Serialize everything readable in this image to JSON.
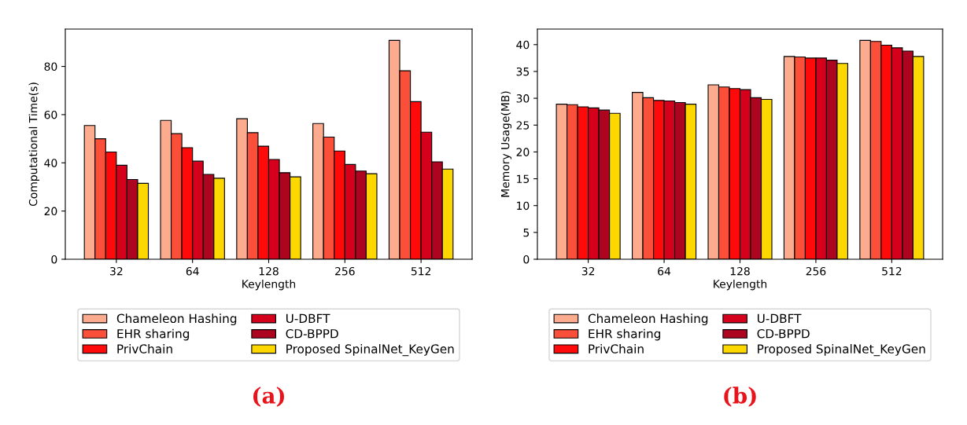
{
  "chart_data": [
    {
      "type": "bar",
      "xlabel": "Keylength",
      "ylabel": "Computational Time(s)",
      "categories": [
        "32",
        "64",
        "128",
        "256",
        "512"
      ],
      "ylim": [
        0,
        95.5
      ],
      "yticks": [
        0,
        20,
        40,
        60,
        80
      ],
      "grid": false,
      "legend": "bottom",
      "annotations": [
        "(a)"
      ],
      "series": [
        {
          "name": "Chameleon Hashing",
          "color": "#fcab8e",
          "values": [
            55.5,
            57.6,
            58.3,
            56.3,
            90.8
          ]
        },
        {
          "name": "EHR sharing",
          "color": "#fb4f3a",
          "values": [
            50.0,
            52.1,
            52.5,
            50.7,
            78.2
          ]
        },
        {
          "name": "PrivChain",
          "color": "#ff0a0a",
          "values": [
            44.5,
            46.3,
            46.9,
            44.9,
            65.4
          ]
        },
        {
          "name": "U-DBFT",
          "color": "#d4001c",
          "values": [
            39.0,
            40.7,
            41.4,
            39.3,
            52.7
          ]
        },
        {
          "name": "CD-BPPD",
          "color": "#ad0420",
          "values": [
            33.1,
            35.2,
            35.9,
            36.6,
            40.4
          ]
        },
        {
          "name": "Proposed SpinalNet_KeyGen",
          "color": "#fdd700",
          "values": [
            31.5,
            33.6,
            34.2,
            35.5,
            37.4
          ]
        }
      ]
    },
    {
      "type": "bar",
      "xlabel": "Keylength",
      "ylabel": "Memory Usage(MB)",
      "categories": [
        "32",
        "64",
        "128",
        "256",
        "512"
      ],
      "ylim": [
        0,
        42.9
      ],
      "yticks": [
        0,
        5,
        10,
        15,
        20,
        25,
        30,
        35,
        40
      ],
      "grid": false,
      "legend": "bottom",
      "annotations": [
        "(b)"
      ],
      "series": [
        {
          "name": "Chameleon Hashing",
          "color": "#fcab8e",
          "values": [
            28.9,
            31.1,
            32.5,
            37.8,
            40.8
          ]
        },
        {
          "name": "EHR sharing",
          "color": "#fb4f3a",
          "values": [
            28.8,
            30.1,
            32.1,
            37.7,
            40.6
          ]
        },
        {
          "name": "PrivChain",
          "color": "#ff0a0a",
          "values": [
            28.4,
            29.6,
            31.8,
            37.5,
            39.9
          ]
        },
        {
          "name": "U-DBFT",
          "color": "#d4001c",
          "values": [
            28.2,
            29.5,
            31.6,
            37.5,
            39.4
          ]
        },
        {
          "name": "CD-BPPD",
          "color": "#ad0420",
          "values": [
            27.8,
            29.2,
            30.1,
            37.1,
            38.8
          ]
        },
        {
          "name": "Proposed SpinalNet_KeyGen",
          "color": "#fdd700",
          "values": [
            27.2,
            28.9,
            29.8,
            36.5,
            37.8
          ]
        }
      ]
    }
  ]
}
